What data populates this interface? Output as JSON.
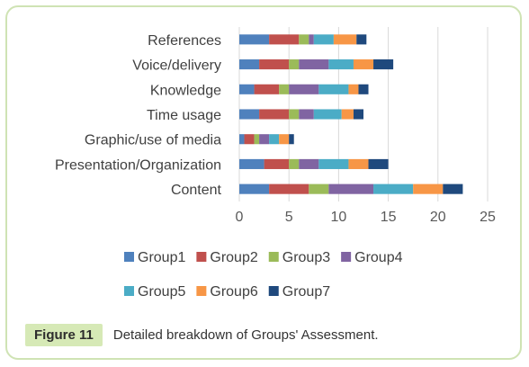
{
  "figure": {
    "label": "Figure 11",
    "caption": "Detailed breakdown of Groups' Assessment."
  },
  "chart_data": {
    "type": "bar",
    "orientation": "horizontal",
    "stacked": true,
    "categories": [
      "Content",
      "Presentation/Organization",
      "Graphic/use of media",
      "Time usage",
      "Knowledge",
      "Voice/delivery",
      "References"
    ],
    "series": [
      {
        "name": "Group1",
        "color": "#4f81bd",
        "values": [
          3,
          2.5,
          0.5,
          2,
          1.5,
          2,
          3
        ]
      },
      {
        "name": "Group2",
        "color": "#c0504d",
        "values": [
          4,
          2.5,
          1,
          3,
          2.5,
          3,
          3
        ]
      },
      {
        "name": "Group3",
        "color": "#9bbb59",
        "values": [
          2,
          1,
          0.5,
          1,
          1,
          1,
          1
        ]
      },
      {
        "name": "Group4",
        "color": "#8064a2",
        "values": [
          4.5,
          2,
          1,
          1.5,
          3,
          3,
          0.5
        ]
      },
      {
        "name": "Group5",
        "color": "#4bacc6",
        "values": [
          4,
          3,
          1,
          2.8,
          3,
          2.5,
          2
        ]
      },
      {
        "name": "Group6",
        "color": "#f79646",
        "values": [
          3,
          2,
          1,
          1.2,
          1,
          2,
          2.3
        ]
      },
      {
        "name": "Group7",
        "color": "#1f497d",
        "values": [
          2,
          2,
          0.5,
          1,
          1,
          2,
          1
        ]
      }
    ],
    "xlim": [
      0,
      25
    ],
    "xticks": [
      0,
      5,
      10,
      15,
      20,
      25
    ],
    "grid": "vertical",
    "legend": "bottom"
  }
}
